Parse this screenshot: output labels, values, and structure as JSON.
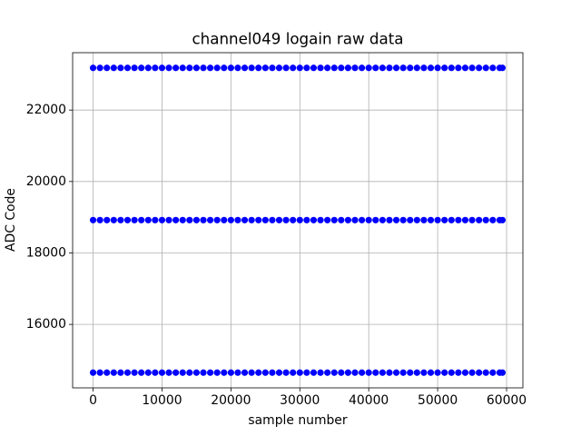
{
  "chart_data": {
    "type": "scatter",
    "title": "channel049 logain raw data",
    "xlabel": "sample number",
    "ylabel": "ADC Code",
    "x": [
      0,
      1000,
      2000,
      3000,
      4000,
      5000,
      6000,
      7000,
      8000,
      9000,
      10000,
      11000,
      12000,
      13000,
      14000,
      15000,
      16000,
      17000,
      18000,
      19000,
      20000,
      21000,
      22000,
      23000,
      24000,
      25000,
      26000,
      27000,
      28000,
      29000,
      30000,
      31000,
      32000,
      33000,
      34000,
      35000,
      36000,
      37000,
      38000,
      39000,
      40000,
      41000,
      42000,
      43000,
      44000,
      45000,
      46000,
      47000,
      48000,
      49000,
      50000,
      51000,
      52000,
      53000,
      54000,
      55000,
      56000,
      57000,
      58000,
      59000,
      59400
    ],
    "series": [
      {
        "color": "#0000ff",
        "values": [
          23180,
          23180,
          23180,
          23180,
          23180,
          23180,
          23180,
          23180,
          23180,
          23180,
          23180,
          23180,
          23180,
          23180,
          23180,
          23180,
          23180,
          23180,
          23180,
          23180,
          23180,
          23180,
          23180,
          23180,
          23180,
          23180,
          23180,
          23180,
          23180,
          23180,
          23180,
          23180,
          23180,
          23180,
          23180,
          23180,
          23180,
          23180,
          23180,
          23180,
          23180,
          23180,
          23180,
          23180,
          23180,
          23180,
          23180,
          23180,
          23180,
          23180,
          23180,
          23180,
          23180,
          23180,
          23180,
          23180,
          23180,
          23180,
          23180,
          23180,
          23180
        ]
      },
      {
        "color": "#0000ff",
        "values": [
          18920,
          18920,
          18920,
          18920,
          18920,
          18920,
          18920,
          18920,
          18920,
          18920,
          18920,
          18920,
          18920,
          18920,
          18920,
          18920,
          18920,
          18920,
          18920,
          18920,
          18920,
          18920,
          18920,
          18920,
          18920,
          18920,
          18920,
          18920,
          18920,
          18920,
          18920,
          18920,
          18920,
          18920,
          18920,
          18920,
          18920,
          18920,
          18920,
          18920,
          18920,
          18920,
          18920,
          18920,
          18920,
          18920,
          18920,
          18920,
          18920,
          18920,
          18920,
          18920,
          18920,
          18920,
          18920,
          18920,
          18920,
          18920,
          18920,
          18920,
          18920
        ]
      },
      {
        "color": "#0000ff",
        "values": [
          14650,
          14650,
          14650,
          14650,
          14650,
          14650,
          14650,
          14650,
          14650,
          14650,
          14650,
          14650,
          14650,
          14650,
          14650,
          14650,
          14650,
          14650,
          14650,
          14650,
          14650,
          14650,
          14650,
          14650,
          14650,
          14650,
          14650,
          14650,
          14650,
          14650,
          14650,
          14650,
          14650,
          14650,
          14650,
          14650,
          14650,
          14650,
          14650,
          14650,
          14650,
          14650,
          14650,
          14650,
          14650,
          14650,
          14650,
          14650,
          14650,
          14650,
          14650,
          14650,
          14650,
          14650,
          14650,
          14650,
          14650,
          14650,
          14650,
          14650,
          14650
        ]
      }
    ],
    "xlim": [
      -2970,
      62370
    ],
    "ylim": [
      14224,
      23606
    ],
    "xticks": [
      0,
      10000,
      20000,
      30000,
      40000,
      50000,
      60000
    ],
    "yticks": [
      16000,
      18000,
      20000,
      22000
    ],
    "grid": true
  }
}
